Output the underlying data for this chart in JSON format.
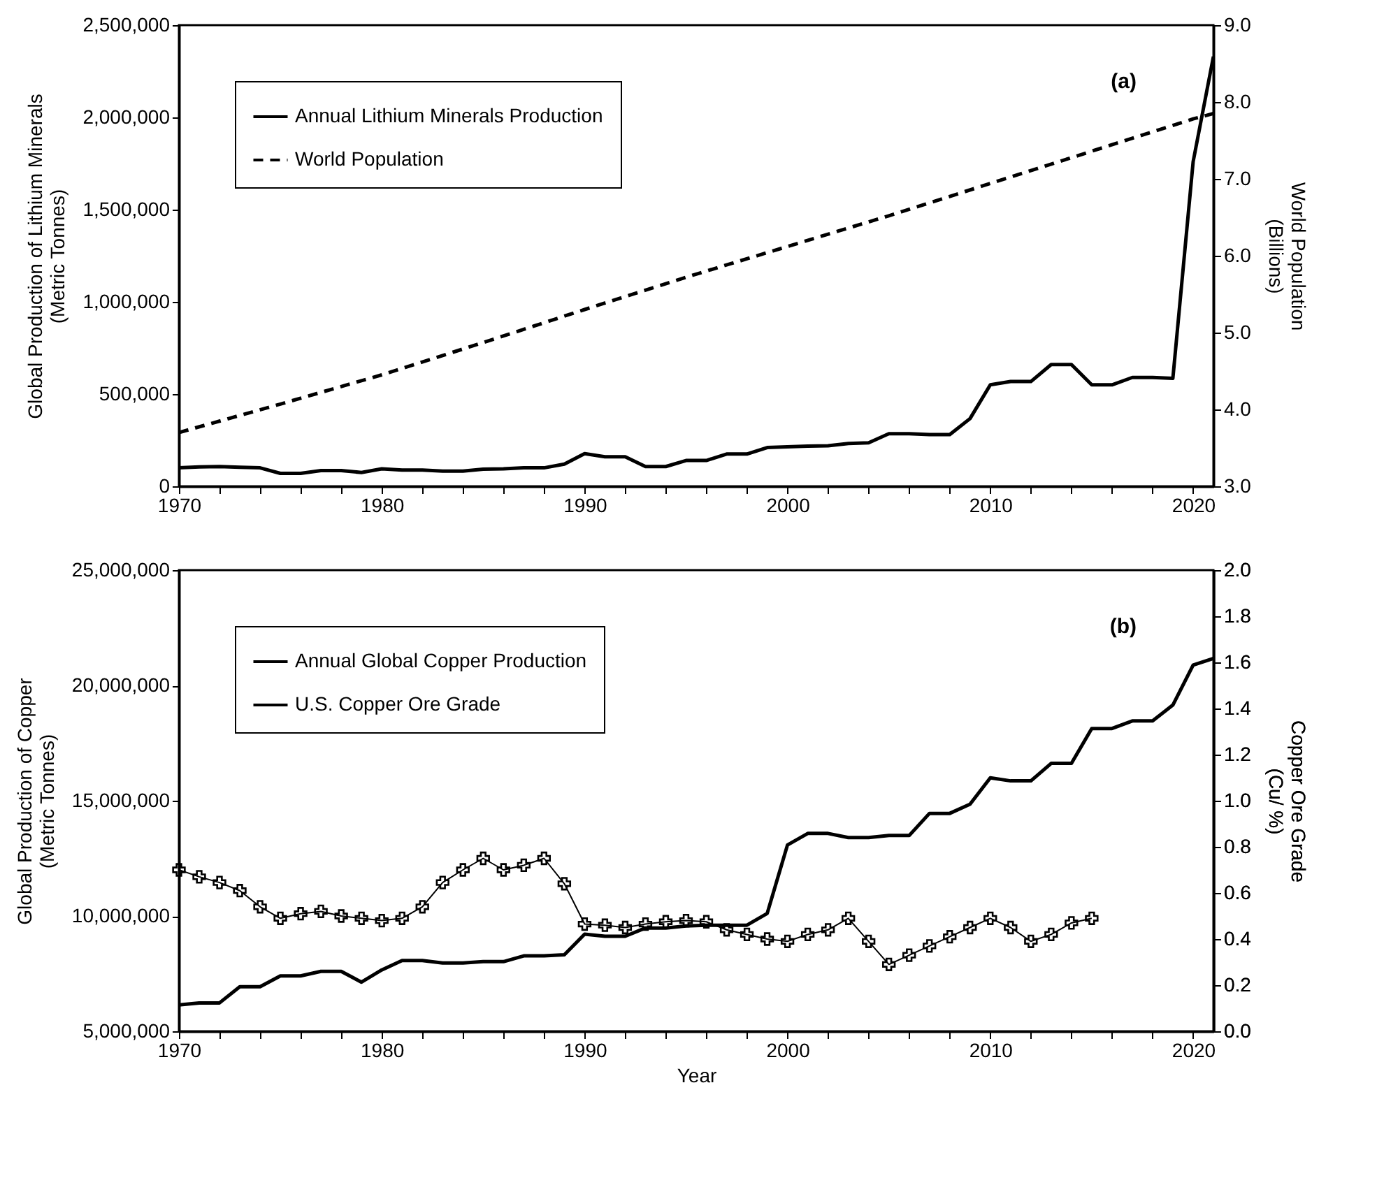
{
  "chart_data": [
    {
      "type": "line",
      "ylabel": "Global Production of Lithium Minerals (Metric Tonnes)",
      "y2label": "World Population (Billions)",
      "annotations": [
        "(a)"
      ],
      "legend": "top left",
      "x": [
        1970,
        1971,
        1972,
        1973,
        1974,
        1975,
        1976,
        1977,
        1978,
        1979,
        1980,
        1981,
        1982,
        1983,
        1984,
        1985,
        1986,
        1987,
        1988,
        1989,
        1990,
        1991,
        1992,
        1993,
        1994,
        1995,
        1996,
        1997,
        1998,
        1999,
        2000,
        2001,
        2002,
        2003,
        2004,
        2005,
        2006,
        2007,
        2008,
        2009,
        2010,
        2011,
        2012,
        2013,
        2014,
        2015,
        2016,
        2017,
        2018,
        2019,
        2020,
        2021
      ],
      "xlim": [
        1970,
        2021
      ],
      "xticks": [
        1970,
        {
          "value": 1972,
          "label": null
        },
        {
          "value": 1974,
          "label": null
        },
        {
          "value": 1976,
          "label": null
        },
        {
          "value": 1978,
          "label": null
        },
        1980,
        {
          "value": 1982,
          "label": null
        },
        {
          "value": 1984,
          "label": null
        },
        {
          "value": 1986,
          "label": null
        },
        {
          "value": 1988,
          "label": null
        },
        1990,
        {
          "value": 1992,
          "label": null
        },
        {
          "value": 1994,
          "label": null
        },
        {
          "value": 1996,
          "label": null
        },
        {
          "value": 1998,
          "label": null
        },
        2000,
        {
          "value": 2002,
          "label": null
        },
        {
          "value": 2004,
          "label": null
        },
        {
          "value": 2006,
          "label": null
        },
        {
          "value": 2008,
          "label": null
        },
        2010,
        {
          "value": 2012,
          "label": null
        },
        {
          "value": 2014,
          "label": null
        },
        {
          "value": 2016,
          "label": null
        },
        {
          "value": 2018,
          "label": null
        },
        2020
      ],
      "ylim": [
        0,
        2500000
      ],
      "yticks": [
        {
          "value": 0,
          "label": "0"
        },
        {
          "value": 500000,
          "label": "500,000"
        },
        {
          "value": 1000000,
          "label": "1,000,000"
        },
        {
          "value": 1500000,
          "label": "1,500,000"
        },
        {
          "value": 2000000,
          "label": "2,000,000"
        },
        {
          "value": 2500000,
          "label": "2,500,000"
        }
      ],
      "y2lim": [
        3,
        9
      ],
      "y2ticks": [
        {
          "value": 3,
          "label": "3.0"
        },
        {
          "value": 4,
          "label": "4.0"
        },
        {
          "value": 5,
          "label": "5.0"
        },
        {
          "value": 6,
          "label": "6.0"
        },
        {
          "value": 7,
          "label": "7.0"
        },
        {
          "value": 8,
          "label": "8.0"
        },
        {
          "value": 9,
          "label": "9.0"
        }
      ],
      "series": [
        {
          "name": "Annual Lithium Minerals Production",
          "color": "#000000",
          "line_style": "solid",
          "values": [
            100000,
            105000,
            107000,
            103000,
            100000,
            70000,
            70000,
            85000,
            85000,
            75000,
            95000,
            88000,
            88000,
            82000,
            82000,
            93000,
            95000,
            100000,
            100000,
            120000,
            177000,
            160000,
            160000,
            107000,
            107000,
            140000,
            140000,
            175000,
            175000,
            210000,
            214000,
            218000,
            220000,
            232000,
            236000,
            285000,
            285000,
            280000,
            280000,
            367000,
            550000,
            568000,
            568000,
            660000,
            660000,
            550000,
            550000,
            590000,
            590000,
            585000,
            1760000,
            2330000
          ]
        },
        {
          "name": "World Population",
          "color": "#000000",
          "line_style": "dashed",
          "axis": "y2",
          "x": [
            1970,
            1975,
            1980,
            1985,
            1990,
            1995,
            2000,
            2005,
            2010,
            2015,
            2020,
            2021
          ],
          "values": [
            3.7,
            4.07,
            4.45,
            4.87,
            5.3,
            5.72,
            6.12,
            6.52,
            6.94,
            7.36,
            7.78,
            7.85
          ]
        }
      ]
    },
    {
      "type": "line",
      "xlabel": "Year",
      "ylabel": "Global Production of Copper (Metric Tonnes)",
      "y2label": "Copper Ore Grade (Cu/ %)",
      "annotations": [
        "(b)"
      ],
      "legend": "top left",
      "x": [
        1970,
        1971,
        1972,
        1973,
        1974,
        1975,
        1976,
        1977,
        1978,
        1979,
        1980,
        1981,
        1982,
        1983,
        1984,
        1985,
        1986,
        1987,
        1988,
        1989,
        1990,
        1991,
        1992,
        1993,
        1994,
        1995,
        1996,
        1997,
        1998,
        1999,
        2000,
        2001,
        2002,
        2003,
        2004,
        2005,
        2006,
        2007,
        2008,
        2009,
        2010,
        2011,
        2012,
        2013,
        2014,
        2015,
        2016,
        2017,
        2018,
        2019,
        2020,
        2021
      ],
      "xlim": [
        1970,
        2021
      ],
      "xticks": [
        1970,
        {
          "value": 1972,
          "label": null
        },
        {
          "value": 1974,
          "label": null
        },
        {
          "value": 1976,
          "label": null
        },
        {
          "value": 1978,
          "label": null
        },
        1980,
        {
          "value": 1982,
          "label": null
        },
        {
          "value": 1984,
          "label": null
        },
        {
          "value": 1986,
          "label": null
        },
        {
          "value": 1988,
          "label": null
        },
        1990,
        {
          "value": 1992,
          "label": null
        },
        {
          "value": 1994,
          "label": null
        },
        {
          "value": 1996,
          "label": null
        },
        {
          "value": 1998,
          "label": null
        },
        2000,
        {
          "value": 2002,
          "label": null
        },
        {
          "value": 2004,
          "label": null
        },
        {
          "value": 2006,
          "label": null
        },
        {
          "value": 2008,
          "label": null
        },
        2010,
        {
          "value": 2012,
          "label": null
        },
        {
          "value": 2014,
          "label": null
        },
        {
          "value": 2016,
          "label": null
        },
        {
          "value": 2018,
          "label": null
        },
        2020
      ],
      "ylim": [
        5000000,
        25000000
      ],
      "yticks": [
        {
          "value": 5000000,
          "label": "5,000,000"
        },
        {
          "value": 10000000,
          "label": "10,000,000"
        },
        {
          "value": 15000000,
          "label": "15,000,000"
        },
        {
          "value": 20000000,
          "label": "20,000,000"
        },
        {
          "value": 25000000,
          "label": "25,000,000"
        }
      ],
      "y2lim": [
        0,
        2
      ],
      "y2ticks": [
        {
          "value": 0,
          "label": "0.0"
        },
        {
          "value": 0.2,
          "label": "0.2"
        },
        {
          "value": 0.4,
          "label": "0.4"
        },
        {
          "value": 0.6,
          "label": "0.6"
        },
        {
          "value": 0.8,
          "label": "0.8"
        },
        {
          "value": 1,
          "label": "1.0"
        },
        {
          "value": 1.2,
          "label": "1.2"
        },
        {
          "value": 1.4,
          "label": "1.4"
        },
        {
          "value": 1.6,
          "label": "1.6"
        },
        {
          "value": 1.8,
          "label": "1.8"
        },
        {
          "value": 2,
          "label": "2.0"
        }
      ],
      "series": [
        {
          "name": "Annual Global Copper Production",
          "color": "#000000",
          "line_style": "solid",
          "values": [
            6140000,
            6230000,
            6230000,
            6930000,
            6930000,
            7400000,
            7400000,
            7600000,
            7600000,
            7130000,
            7660000,
            8070000,
            8070000,
            7960000,
            7960000,
            8020000,
            8020000,
            8270000,
            8270000,
            8320000,
            9210000,
            9120000,
            9120000,
            9480000,
            9480000,
            9570000,
            9600000,
            9600000,
            9600000,
            10110000,
            13080000,
            13580000,
            13580000,
            13400000,
            13400000,
            13490000,
            13490000,
            14450000,
            14450000,
            14850000,
            15990000,
            15860000,
            15860000,
            16620000,
            16620000,
            18130000,
            18130000,
            18460000,
            18460000,
            19150000,
            20880000,
            21170000
          ]
        },
        {
          "name": "U.S. Copper Ore Grade",
          "color": "#000000",
          "line_style": "solid",
          "marker": "cross",
          "axis": "y2",
          "x": [
            1970,
            1971,
            1972,
            1973,
            1974,
            1975,
            1976,
            1977,
            1978,
            1979,
            1980,
            1981,
            1982,
            1983,
            1984,
            1985,
            1986,
            1987,
            1988,
            1989,
            1990,
            1991,
            1992,
            1993,
            1994,
            1995,
            1996,
            1997,
            1998,
            1999,
            2000,
            2001,
            2002,
            2003,
            2004,
            2005,
            2006,
            2007,
            2008,
            2009,
            2010,
            2011,
            2012,
            2013,
            2014,
            2015
          ],
          "values": [
            0.7,
            0.67,
            0.645,
            0.61,
            0.54,
            0.49,
            0.51,
            0.52,
            0.5,
            0.49,
            0.48,
            0.49,
            0.54,
            0.645,
            0.7,
            0.75,
            0.7,
            0.72,
            0.75,
            0.64,
            0.465,
            0.46,
            0.45,
            0.465,
            0.475,
            0.48,
            0.475,
            0.44,
            0.42,
            0.4,
            0.39,
            0.42,
            0.44,
            0.49,
            0.39,
            0.29,
            0.33,
            0.37,
            0.41,
            0.45,
            0.49,
            0.45,
            0.39,
            0.42,
            0.47,
            0.49
          ]
        }
      ]
    }
  ]
}
